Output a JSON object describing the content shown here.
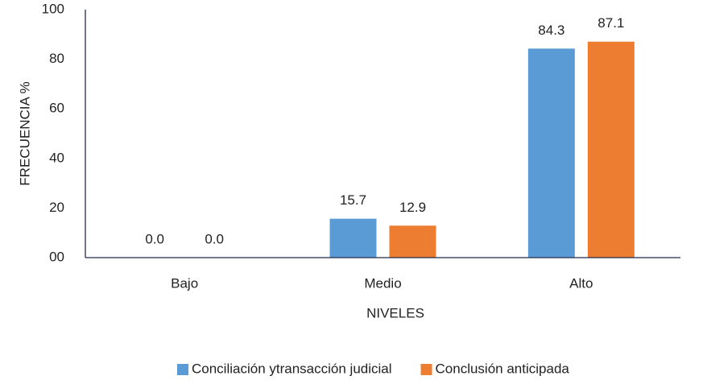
{
  "chart_data": {
    "type": "bar",
    "xlabel": "NIVELES",
    "ylabel": "FRECUENCIA %",
    "categories": [
      "Bajo",
      "Medio",
      "Alto"
    ],
    "series": [
      {
        "name": "Conciliación ytransacción judicial",
        "color": "#5b9bd5",
        "values": [
          0,
          15.7,
          84.3
        ],
        "value_labels": [
          "0.0",
          "15.7",
          "84.3"
        ]
      },
      {
        "name": "Conclusión anticipada",
        "color": "#ed7d31",
        "values": [
          0,
          12.9,
          87.1
        ],
        "value_labels": [
          "0.0",
          "12.9",
          "87.1"
        ]
      }
    ],
    "ylim": [
      0,
      100
    ],
    "yticks": [
      {
        "value": 0,
        "label": "00"
      },
      20,
      40,
      60,
      80,
      100
    ],
    "grid": false,
    "legend": "bottom"
  }
}
